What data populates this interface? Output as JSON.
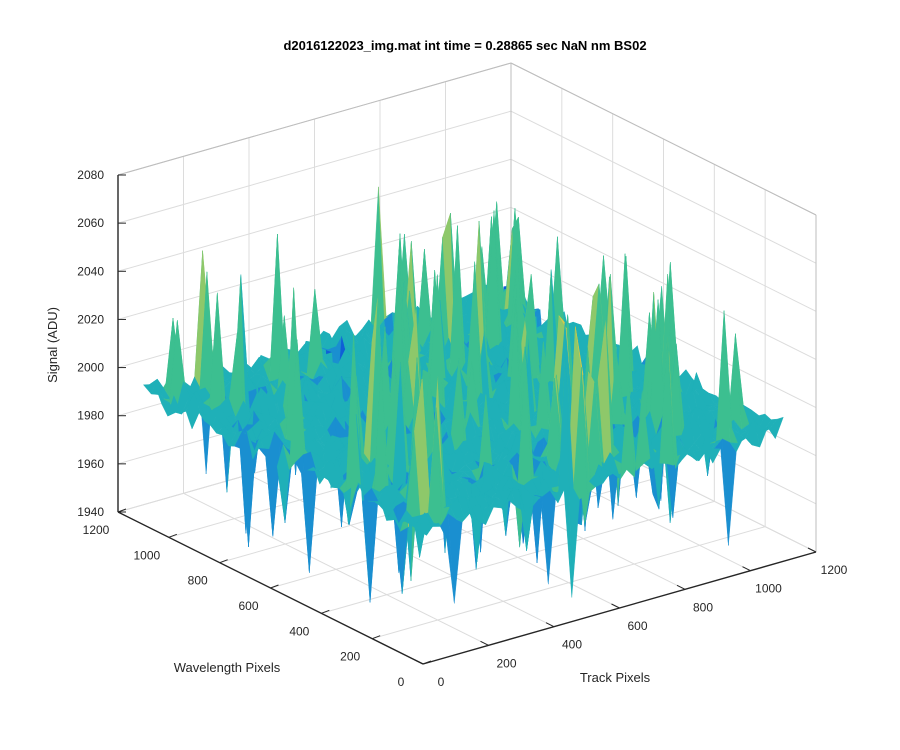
{
  "chart_data": {
    "type": "surface",
    "title": "d2016122023_img.mat int time = 0.28865 sec  NaN nm BS02",
    "zlabel": "Signal (ADU)",
    "xlabel": "Track Pixels",
    "ylabel": "Wavelength Pixels",
    "zlim": [
      1940,
      2080
    ],
    "xlim": [
      0,
      1200
    ],
    "ylim": [
      0,
      1200
    ],
    "z_ticks": [
      "1940",
      "1960",
      "1980",
      "2000",
      "2020",
      "2040",
      "2060",
      "2080"
    ],
    "x_ticks": [
      "0",
      "200",
      "400",
      "600",
      "800",
      "1000",
      "1200"
    ],
    "y_ticks": [
      "0",
      "200",
      "400",
      "600",
      "800",
      "1000",
      "1200"
    ],
    "grid": true,
    "colormap": [
      "#0f5fd6",
      "#1a8fd0",
      "#1fb0b8",
      "#3cbf90",
      "#8ec86a",
      "#d6c84a"
    ],
    "z_baseline": 1995,
    "z_noise_range": [
      1950,
      2070
    ],
    "pixel_extent": 1100
  }
}
